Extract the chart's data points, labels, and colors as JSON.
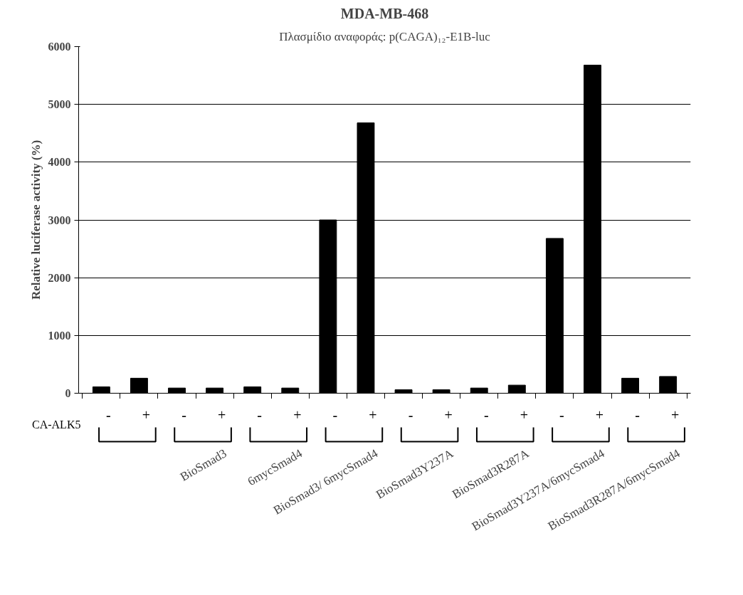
{
  "chart_data": {
    "type": "bar",
    "title": "MDA-MB-468",
    "subtitle": "Πλασμίδιο αναφοράς: p(CAGA)₁₂-E1B-luc",
    "ylabel": "Relative luciferase activity (%)",
    "categories": [
      "-",
      "+",
      "-",
      "+",
      "-",
      "+",
      "-",
      "+",
      "-",
      "+",
      "-",
      "+",
      "-",
      "+",
      "-",
      "+"
    ],
    "values": [
      110,
      260,
      90,
      90,
      110,
      90,
      3000,
      4680,
      60,
      60,
      90,
      140,
      2680,
      5680,
      260,
      290
    ],
    "color": "#000000",
    "ylim": [
      0,
      6000
    ],
    "yticks": [
      0,
      1000,
      2000,
      3000,
      4000,
      5000,
      6000
    ],
    "grid": "y",
    "annotations": [
      "CA-ALK5",
      "BioSmad3",
      "6mycSmad4",
      "BioSmad3/ 6mycSmad4",
      "BioSmad3Y237A",
      "BioSmad3R287A",
      "BioSmad3Y237A/6mycSmad4",
      "BioSmad3R287A/6mycSmad4"
    ]
  }
}
